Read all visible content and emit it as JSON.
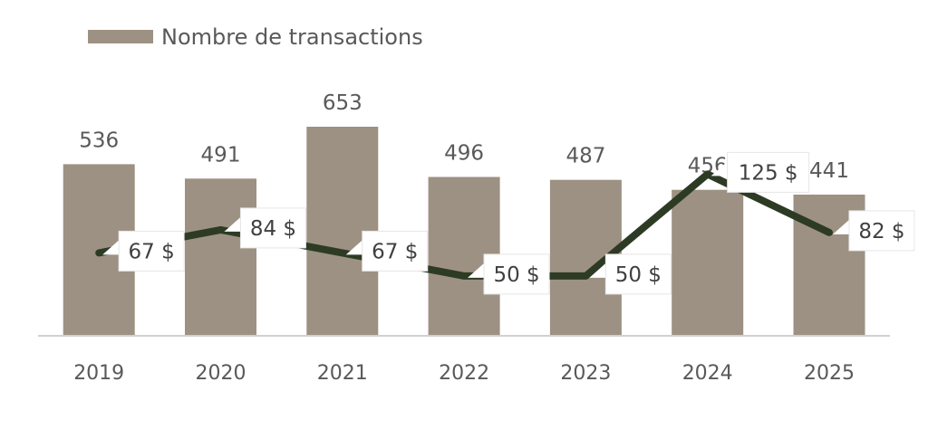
{
  "legend": {
    "bar_series": "Nombre de transactions"
  },
  "colors": {
    "bar": "#9d9183",
    "line": "#2d3b25",
    "axis": "#d0d0d0",
    "label_box": "#ffffff"
  },
  "chart_data": {
    "type": "bar",
    "categories": [
      "2019",
      "2020",
      "2021",
      "2022",
      "2023",
      "2024",
      "2025"
    ],
    "series": [
      {
        "name": "Nombre de transactions",
        "type": "bar",
        "values": [
          536,
          491,
          653,
          496,
          487,
          456,
          441
        ],
        "labels": [
          "536",
          "491",
          "653",
          "496",
          "487",
          "456",
          "441"
        ]
      },
      {
        "type": "line",
        "values": [
          67,
          84,
          67,
          50,
          50,
          125,
          82
        ],
        "labels": [
          "67 $",
          "84 $",
          "67 $",
          "50 $",
          "50 $",
          "125 $",
          "82 $"
        ]
      }
    ],
    "title": "",
    "xlabel": "",
    "ylabel": "",
    "legend_position": "top-left",
    "grid": false
  }
}
